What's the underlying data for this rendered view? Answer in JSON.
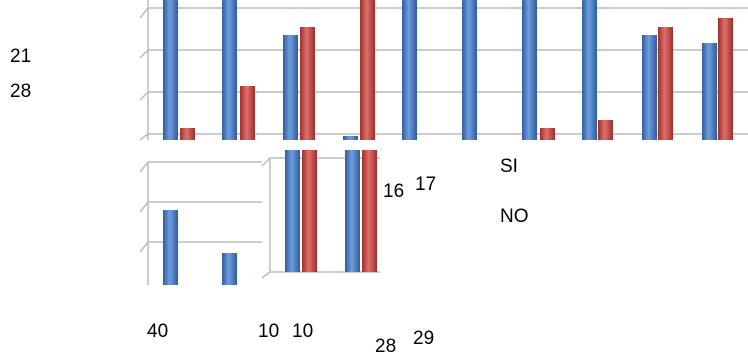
{
  "left_labels": [
    "21",
    "28"
  ],
  "middle_labels": [
    "16",
    "17"
  ],
  "legend": [
    "SI",
    "NO"
  ],
  "bottom_labels": [
    "40",
    "10",
    "10",
    "28",
    "29"
  ]
}
